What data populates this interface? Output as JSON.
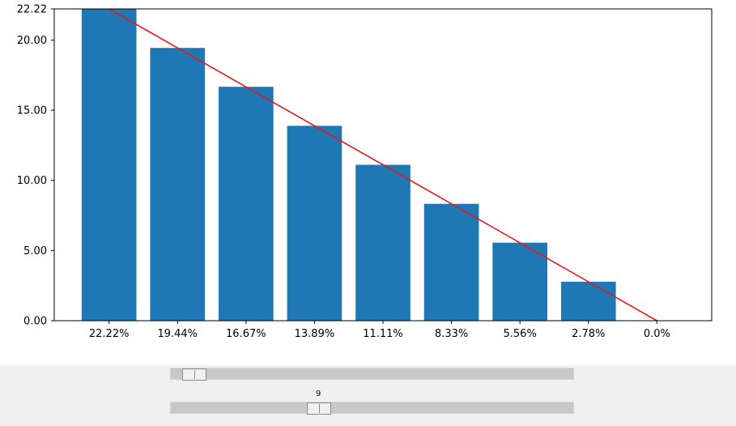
{
  "chart_data": {
    "type": "bar",
    "categories": [
      "22.22%",
      "19.44%",
      "16.67%",
      "13.89%",
      "11.11%",
      "8.33%",
      "5.56%",
      "2.78%",
      "0.0%"
    ],
    "values": [
      22.22,
      19.44,
      16.67,
      13.89,
      11.11,
      8.33,
      5.56,
      2.78,
      0.0
    ],
    "bar_color": "#1f77b4",
    "overlay_line": {
      "x": [
        "22.22%",
        "0.0%"
      ],
      "values": [
        22.22,
        0.0
      ],
      "color": "#e41a1c"
    },
    "ylim": [
      0,
      22.22
    ],
    "yticks": [
      "0.00",
      "5.00",
      "10.00",
      "15.00",
      "20.00",
      "22.22"
    ],
    "ytick_values": [
      0,
      5,
      10,
      15,
      20,
      22.22
    ],
    "grid": false,
    "title": "",
    "xlabel": "",
    "ylabel": ""
  },
  "controls": {
    "slider1": {
      "fraction": 0.03
    },
    "slider2": {
      "value_label": "9",
      "fraction": 0.36
    }
  }
}
